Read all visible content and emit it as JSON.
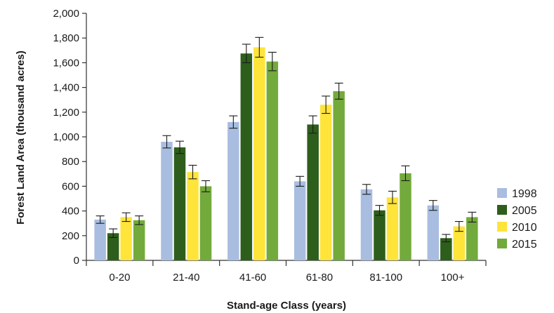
{
  "chart_data": {
    "type": "bar",
    "xlabel": "Stand-age Class (years)",
    "ylabel": "Forest Land Area (thousand acres)",
    "ylim": [
      0,
      2000
    ],
    "yticks": [
      0,
      200,
      400,
      600,
      800,
      1000,
      1200,
      1400,
      1600,
      1800,
      2000
    ],
    "ytick_labels": [
      "0",
      "200",
      "400",
      "600",
      "800",
      "1,000",
      "1,200",
      "1,400",
      "1,600",
      "1,800",
      "2,000"
    ],
    "categories": [
      "0-20",
      "21-40",
      "41-60",
      "61-80",
      "81-100",
      "100+"
    ],
    "grid": false,
    "legend_position": "right",
    "series": [
      {
        "name": "1998",
        "color": "#a9bde0",
        "values": [
          330,
          960,
          1120,
          640,
          575,
          445
        ],
        "errors": [
          30,
          50,
          50,
          40,
          40,
          40
        ]
      },
      {
        "name": "2005",
        "color": "#2e5e1b",
        "values": [
          220,
          915,
          1675,
          1100,
          405,
          180
        ],
        "errors": [
          35,
          50,
          75,
          70,
          40,
          30
        ]
      },
      {
        "name": "2010",
        "color": "#ffe43a",
        "values": [
          350,
          715,
          1725,
          1260,
          510,
          275
        ],
        "errors": [
          35,
          55,
          80,
          70,
          50,
          40
        ]
      },
      {
        "name": "2015",
        "color": "#73aa3c",
        "values": [
          325,
          600,
          1610,
          1370,
          705,
          350
        ],
        "errors": [
          35,
          45,
          75,
          65,
          60,
          40
        ]
      }
    ]
  }
}
